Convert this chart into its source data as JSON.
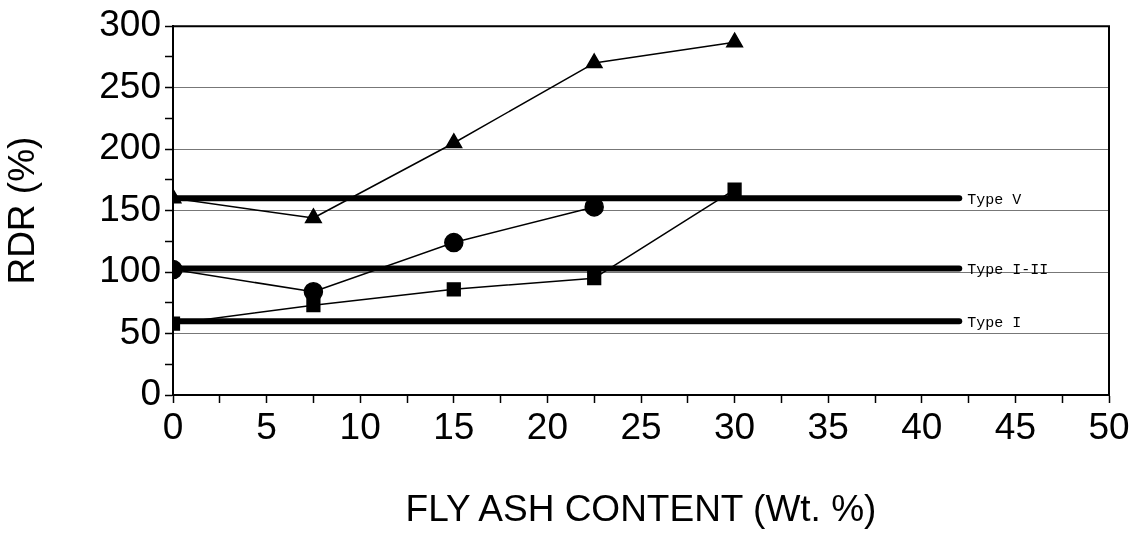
{
  "chart_data": {
    "type": "line",
    "xlabel": "FLY ASH CONTENT (Wt. %)",
    "ylabel": "RDR (%)",
    "x": [
      0,
      7.5,
      15,
      22.5,
      30
    ],
    "series": [
      {
        "color": "#000000",
        "marker": "triangle",
        "values": [
          160,
          144,
          205,
          270,
          287
        ]
      },
      {
        "color": "#000000",
        "marker": "circle",
        "values": [
          102,
          84,
          124,
          153,
          null
        ]
      },
      {
        "color": "#000000",
        "marker": "square",
        "values": [
          58,
          73,
          86,
          95,
          167
        ]
      }
    ],
    "xlim": [
      0,
      50
    ],
    "xticks": [
      0,
      {
        "value": 2.5,
        "label": null
      },
      5,
      {
        "value": 7.5,
        "label": null
      },
      10,
      {
        "value": 12.5,
        "label": null
      },
      15,
      {
        "value": 17.5,
        "label": null
      },
      20,
      {
        "value": 22.5,
        "label": null
      },
      25,
      {
        "value": 27.5,
        "label": null
      },
      30,
      {
        "value": 32.5,
        "label": null
      },
      35,
      {
        "value": 37.5,
        "label": null
      },
      40,
      {
        "value": 42.5,
        "label": null
      },
      45,
      {
        "value": 47.5,
        "label": null
      },
      50
    ],
    "ylim": [
      0,
      300
    ],
    "yticks": [
      0,
      {
        "value": 25,
        "label": null
      },
      50,
      {
        "value": 75,
        "label": null
      },
      100,
      {
        "value": 125,
        "label": null
      },
      150,
      {
        "value": 175,
        "label": null
      },
      200,
      {
        "value": 225,
        "label": null
      },
      250,
      {
        "value": 275,
        "label": null
      },
      300
    ],
    "grid": "y",
    "legend": false,
    "line_style": "solid",
    "ref_lines": [
      {
        "axis": "y",
        "value": 160,
        "label": "Type V"
      },
      {
        "axis": "y",
        "value": 103,
        "label": "Type I-II"
      },
      {
        "axis": "y",
        "value": 60,
        "label": "Type I"
      }
    ]
  }
}
